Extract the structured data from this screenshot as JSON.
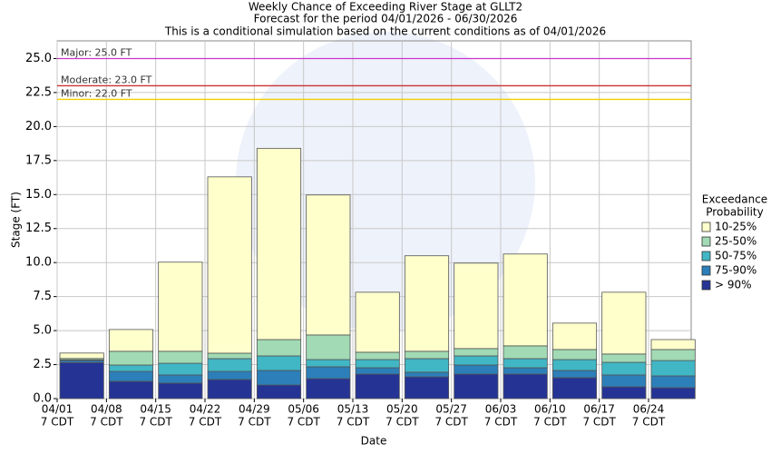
{
  "chart_data": {
    "type": "bar",
    "title": "Weekly Chance of Exceeding River Stage at GLLT2",
    "subtitle": [
      "Forecast for the period 04/01/2026 - 06/30/2026",
      "This is a conditional simulation based on the current conditions as of 04/01/2026"
    ],
    "x_label": "Date",
    "y_label": "Stage (FT)",
    "categories": [
      "04/01",
      "04/08",
      "04/15",
      "04/22",
      "04/29",
      "05/06",
      "05/13",
      "05/20",
      "05/27",
      "06/03",
      "06/10",
      "06/17",
      "06/24"
    ],
    "x_tick_suffix": "7 CDT",
    "stacked": true,
    "legend_title": [
      "Exceedance",
      "Probability"
    ],
    "legend_position": "right",
    "series": [
      {
        "name": "10-25%",
        "color": "#ffffcc",
        "values": [
          0.4,
          1.6,
          6.55,
          12.96,
          14.06,
          10.29,
          4.41,
          7.02,
          6.28,
          6.75,
          1.94,
          4.54,
          0.73
        ]
      },
      {
        "name": "25-50%",
        "color": "#a1dab4",
        "values": [
          0.1,
          1.01,
          0.88,
          0.4,
          1.2,
          1.81,
          0.54,
          0.54,
          0.54,
          0.94,
          0.74,
          0.61,
          0.81
        ]
      },
      {
        "name": "50-75%",
        "color": "#41b6c4",
        "values": [
          0.05,
          0.47,
          0.86,
          0.94,
          1.07,
          0.53,
          0.6,
          1.0,
          0.67,
          0.67,
          0.8,
          0.93,
          1.13
        ]
      },
      {
        "name": "75-90%",
        "color": "#2c7fb8",
        "values": [
          0.15,
          0.73,
          0.6,
          0.6,
          1.07,
          0.87,
          0.47,
          0.34,
          0.67,
          0.47,
          0.53,
          0.87,
          0.87
        ]
      },
      {
        "name": "> 90%",
        "color": "#253494",
        "values": [
          2.65,
          1.27,
          1.14,
          1.4,
          1.0,
          1.47,
          1.8,
          1.6,
          1.8,
          1.8,
          1.54,
          0.87,
          0.8
        ]
      }
    ],
    "thresholds": [
      {
        "label": "Major: 25.0 FT",
        "value": 25,
        "color": "#cc33cc"
      },
      {
        "label": "Moderate: 23.0 FT",
        "value": 23,
        "color": "#cc3333"
      },
      {
        "label": "Minor: 22.0 FT",
        "value": 22,
        "color": "#f0d000"
      }
    ],
    "ylim": [
      0,
      26.3
    ],
    "yticks": [
      {
        "value": 0,
        "label": "0.0"
      },
      2.5,
      {
        "value": 5,
        "label": "5.0"
      },
      7.5,
      {
        "value": 10,
        "label": "10.0"
      },
      12.5,
      {
        "value": 15,
        "label": "15.0"
      },
      17.5,
      {
        "value": 20,
        "label": "20.0"
      },
      22.5,
      {
        "value": 25,
        "label": "25.0"
      }
    ],
    "grid": true
  }
}
